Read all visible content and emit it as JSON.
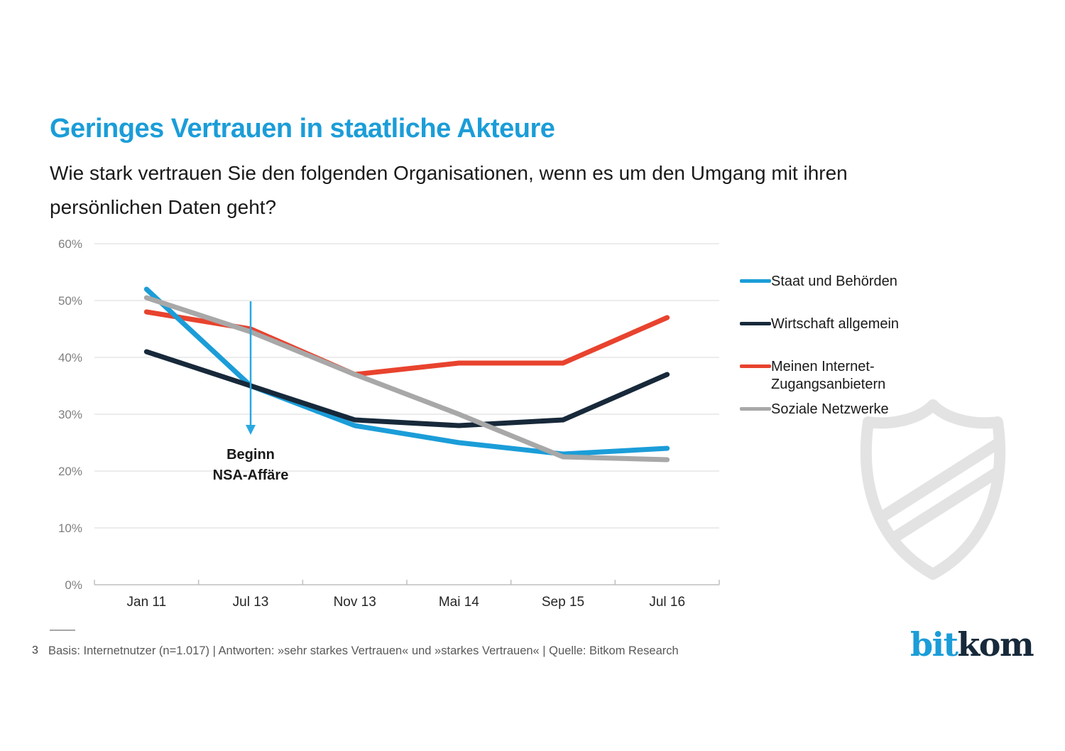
{
  "page": {
    "title": "Geringes Vertrauen in staatliche Akteure",
    "subtitle": "Wie stark vertrauen Sie den folgenden Organisationen, wenn es um den Umgang mit ihren persönlichen Daten geht?",
    "page_number": "3",
    "footnote": "Basis: Internetnutzer (n=1.017) | Antworten: »sehr starkes Vertrauen« und »starkes Vertrauen« | Quelle: Bitkom Research",
    "logo": {
      "part1": "bit",
      "part2": "kom"
    }
  },
  "annotation": {
    "text": "Beginn\nNSA-Affäre"
  },
  "colors": {
    "brand_blue": "#1b9dd8",
    "dark_navy": "#17293a",
    "red": "#e8432e",
    "gray_series": "#a8a8a8",
    "grid": "#d9d9d9",
    "axis": "#bfbfbf",
    "axis_label": "#7f7f7f",
    "footnote_text": "#595959",
    "shield": "#e3e3e3",
    "arrow": "#29a9e1"
  },
  "chart_data": {
    "type": "line",
    "title": "",
    "xlabel": "",
    "ylabel": "",
    "categories": [
      "Jan 11",
      "Jul 13",
      "Nov 13",
      "Mai 14",
      "Sep 15",
      "Jul 16"
    ],
    "series": [
      {
        "name": "Staat und Behörden",
        "legend_label": "Staat und Behörden",
        "color": "#1b9dd8",
        "values": [
          52,
          35,
          28,
          25,
          23,
          24
        ]
      },
      {
        "name": "Wirtschaft allgemein",
        "legend_label": "Wirtschaft allgemein",
        "color": "#17293a",
        "values": [
          41,
          35,
          29,
          28,
          29,
          37
        ]
      },
      {
        "name": "Meinen Internet-Zugangsanbietern",
        "legend_label": "Meinen Internet-\nZugangsanbietern",
        "color": "#e8432e",
        "values": [
          48,
          45,
          37,
          39,
          39,
          47
        ]
      },
      {
        "name": "Soziale Netzwerke",
        "legend_label": "Soziale Netzwerke",
        "color": "#a8a8a8",
        "values": [
          50.5,
          44.5,
          37,
          30,
          22.5,
          22
        ]
      }
    ],
    "ylim": [
      0,
      60
    ],
    "yticks": [
      0,
      10,
      20,
      30,
      40,
      50,
      60
    ],
    "ytick_suffix": "%",
    "grid": true,
    "legend_position": "right",
    "annotations": [
      {
        "text": "Beginn NSA-Affäre",
        "at_category": "Jul 13",
        "marker": "down-arrow"
      }
    ]
  }
}
